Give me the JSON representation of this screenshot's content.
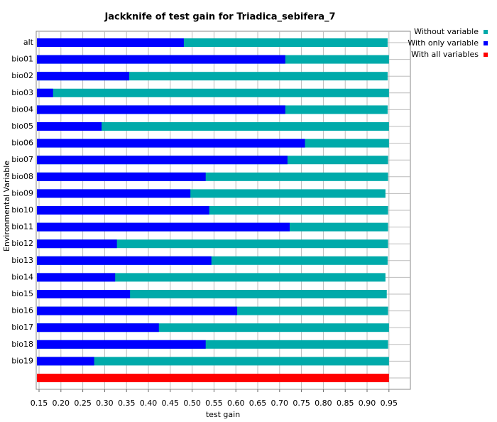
{
  "chart_data": {
    "type": "bar",
    "orientation": "horizontal",
    "title": "Jackknife of test gain for Triadica_sebifera_7",
    "xlabel": "test gain",
    "ylabel": "Environmental Variable",
    "categories": [
      "alt",
      "bio01",
      "bio02",
      "bio03",
      "bio04",
      "bio05",
      "bio06",
      "bio07",
      "bio08",
      "bio09",
      "bio10",
      "bio11",
      "bio12",
      "bio13",
      "bio14",
      "bio15",
      "bio16",
      "bio17",
      "bio18",
      "bio19",
      null
    ],
    "series": [
      {
        "name": "Without variable",
        "color": "#00aaaa",
        "values": [
          0.947,
          0.95,
          0.947,
          0.95,
          0.947,
          0.95,
          0.95,
          0.948,
          0.948,
          0.942,
          0.948,
          0.948,
          0.948,
          0.947,
          0.942,
          0.945,
          0.948,
          0.95,
          0.948,
          0.95,
          null
        ]
      },
      {
        "name": "With only variable",
        "color": "#0000ff",
        "values": [
          0.481,
          0.713,
          0.356,
          0.182,
          0.713,
          0.293,
          0.758,
          0.718,
          0.531,
          0.496,
          0.539,
          0.723,
          0.328,
          0.544,
          0.324,
          0.358,
          0.603,
          0.424,
          0.531,
          0.276,
          null
        ]
      },
      {
        "name": "With all variables",
        "color": "#ff0000",
        "values": [
          null,
          null,
          null,
          null,
          null,
          null,
          null,
          null,
          null,
          null,
          null,
          null,
          null,
          null,
          null,
          null,
          null,
          null,
          null,
          null,
          0.95
        ]
      }
    ],
    "xlim": [
      0.1435,
      0.999
    ],
    "xticks": [
      0.15,
      {
        "value": 0.2,
        "label": "0.20"
      },
      0.25,
      {
        "value": 0.3,
        "label": "0.30"
      },
      0.35,
      {
        "value": 0.4,
        "label": "0.40"
      },
      0.45,
      {
        "value": 0.5,
        "label": "0.50"
      },
      0.55,
      {
        "value": 0.6,
        "label": "0.60"
      },
      0.65,
      {
        "value": 0.7,
        "label": "0.70"
      },
      0.75,
      {
        "value": 0.8,
        "label": "0.80"
      },
      0.85,
      {
        "value": 0.9,
        "label": "0.90"
      },
      0.95
    ],
    "grid": true,
    "legend": "top-right"
  }
}
